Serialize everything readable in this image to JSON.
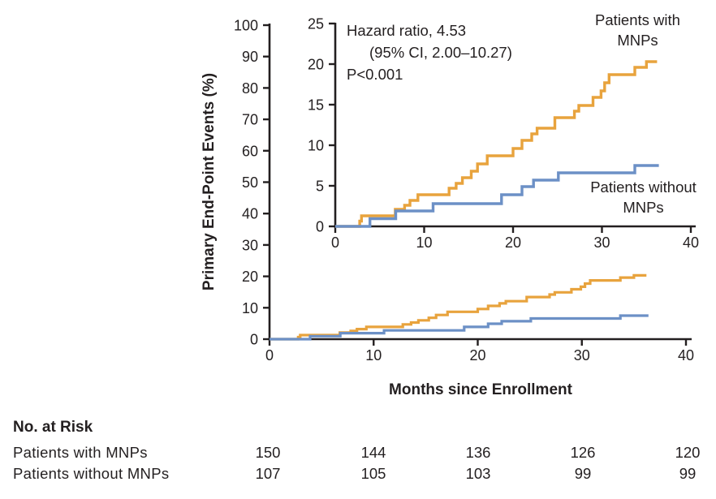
{
  "chart_data": {
    "type": "line",
    "subtype": "kaplan-meier-step",
    "title": "",
    "xlabel": "Months since Enrollment",
    "ylabel": "Primary End-Point Events (%)",
    "x_ticks": [
      0,
      10,
      20,
      30,
      40
    ],
    "main_axis": {
      "ylim": [
        0,
        100
      ],
      "y_ticks": [
        0,
        10,
        20,
        30,
        40,
        50,
        60,
        70,
        80,
        90,
        100
      ],
      "xlim": [
        0,
        40
      ]
    },
    "inset_axis": {
      "ylim": [
        0,
        25
      ],
      "y_ticks": [
        0,
        5,
        10,
        15,
        20,
        25
      ],
      "xlim": [
        0,
        40
      ]
    },
    "grid": false,
    "colors": {
      "with_mnps": "#E8A33D",
      "without_mnps": "#6C90C6",
      "axis": "#231f20"
    },
    "annotation": [
      "Hazard ratio, 4.53",
      "(95% CI, 2.00–10.27)",
      "P<0.001"
    ],
    "legend": {
      "with": [
        "Patients with",
        "MNPs"
      ],
      "without": [
        "Patients without",
        "MNPs"
      ]
    },
    "series": [
      {
        "name": "Patients with MNPs",
        "color": "#E8A33D",
        "points": [
          [
            0,
            0
          ],
          [
            2.75,
            0.65
          ],
          [
            2.95,
            1.3
          ],
          [
            6.75,
            2.1
          ],
          [
            7.8,
            2.6
          ],
          [
            8.4,
            3.2
          ],
          [
            9.3,
            3.9
          ],
          [
            12.8,
            4.7
          ],
          [
            13.6,
            5.3
          ],
          [
            14.3,
            6.0
          ],
          [
            15.3,
            6.8
          ],
          [
            16.0,
            7.7
          ],
          [
            17.1,
            8.7
          ],
          [
            20.0,
            9.6
          ],
          [
            21.0,
            10.6
          ],
          [
            22.1,
            11.4
          ],
          [
            22.7,
            12.1
          ],
          [
            24.7,
            13.4
          ],
          [
            26.9,
            14.2
          ],
          [
            27.4,
            14.9
          ],
          [
            29.0,
            15.9
          ],
          [
            29.9,
            16.7
          ],
          [
            30.3,
            17.7
          ],
          [
            30.8,
            18.7
          ],
          [
            33.7,
            19.6
          ],
          [
            35.0,
            20.3
          ],
          [
            36.2,
            20.3
          ]
        ]
      },
      {
        "name": "Patients without MNPs",
        "color": "#6C90C6",
        "points": [
          [
            0,
            0
          ],
          [
            3.9,
            0.95
          ],
          [
            6.8,
            1.9
          ],
          [
            11.0,
            2.8
          ],
          [
            18.7,
            3.9
          ],
          [
            21.0,
            4.9
          ],
          [
            22.3,
            5.7
          ],
          [
            25.1,
            6.6
          ],
          [
            33.7,
            7.5
          ],
          [
            36.4,
            7.5
          ]
        ]
      }
    ],
    "risk_table": {
      "header": "No. at Risk",
      "columns_months": [
        0,
        10,
        20,
        30,
        40
      ],
      "rows": [
        {
          "label": "Patients with MNPs",
          "counts": [
            "150",
            "144",
            "136",
            "126",
            "120"
          ]
        },
        {
          "label": "Patients without MNPs",
          "counts": [
            "107",
            "105",
            "103",
            "99",
            "99"
          ]
        }
      ]
    }
  }
}
